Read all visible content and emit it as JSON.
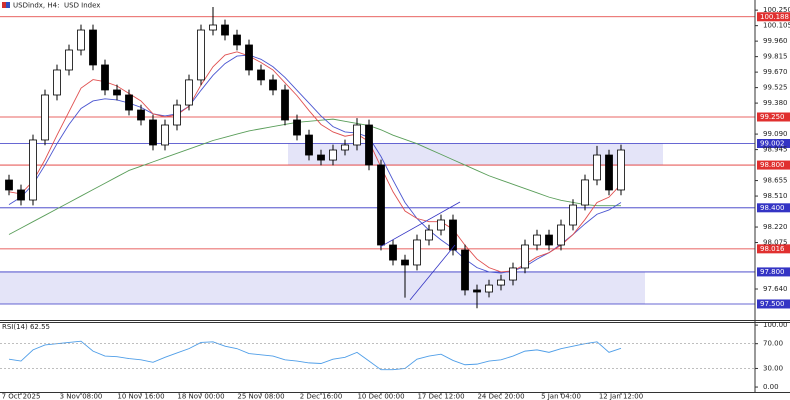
{
  "chart_data": [
    {
      "type": "candlestick",
      "symbol": "USDindx, H4:",
      "description": "USD Index",
      "categories": [
        null,
        "7 Oct 2025",
        null,
        null,
        null,
        null,
        "3 Nov 08:00",
        null,
        null,
        null,
        null,
        "10 Nov 16:00",
        null,
        null,
        null,
        null,
        "18 Nov 00:00",
        null,
        null,
        null,
        null,
        "25 Nov 08:00",
        null,
        null,
        null,
        null,
        "2 Dec 16:00",
        null,
        null,
        null,
        null,
        "10 Dec 00:00",
        null,
        null,
        null,
        null,
        "17 Dec 12:00",
        null,
        null,
        null,
        null,
        "24 Dec 20:00",
        null,
        null,
        null,
        null,
        "5 Jan 04:00",
        null,
        null,
        null,
        null,
        "12 Jan 12:00"
      ],
      "open": [
        98.66,
        98.567,
        98.473,
        99.035,
        99.456,
        99.69,
        99.877,
        100.064,
        99.737,
        99.503,
        99.456,
        99.315,
        99.222,
        98.988,
        99.175,
        99.362,
        99.597,
        100.064,
        100.111,
        100.017,
        99.924,
        99.69,
        99.597,
        99.503,
        99.222,
        99.081,
        98.894,
        98.847,
        98.941,
        98.988,
        99.175,
        98.801,
        98.052,
        97.911,
        97.865,
        98.099,
        98.192,
        98.286,
        98.005,
        97.631,
        97.612,
        97.677,
        97.724,
        97.837,
        98.052,
        98.145,
        98.052,
        98.239,
        98.426,
        98.661,
        98.894,
        98.567
      ],
      "high": [
        98.71,
        98.617,
        99.085,
        99.506,
        99.74,
        99.927,
        100.114,
        100.114,
        99.787,
        99.553,
        99.506,
        99.365,
        99.272,
        99.225,
        99.412,
        99.647,
        100.114,
        100.28,
        100.161,
        100.067,
        99.974,
        99.74,
        99.647,
        99.553,
        99.272,
        99.131,
        98.944,
        98.991,
        99.038,
        99.24,
        99.225,
        98.851,
        98.102,
        97.961,
        98.149,
        98.242,
        98.336,
        98.336,
        98.055,
        97.681,
        97.727,
        97.774,
        97.887,
        98.102,
        98.195,
        98.195,
        98.289,
        98.48,
        98.711,
        98.98,
        98.944,
        98.991
      ],
      "low": [
        98.517,
        98.423,
        98.423,
        98.985,
        99.406,
        99.64,
        99.827,
        99.687,
        99.453,
        99.406,
        99.265,
        99.172,
        98.938,
        98.938,
        99.125,
        99.312,
        99.547,
        100.014,
        99.967,
        99.874,
        99.64,
        99.547,
        99.453,
        99.172,
        99.031,
        98.844,
        98.797,
        98.797,
        98.891,
        98.938,
        98.751,
        98.002,
        97.861,
        97.56,
        97.815,
        98.049,
        98.142,
        97.955,
        97.581,
        97.46,
        97.562,
        97.627,
        97.674,
        97.787,
        98.002,
        98.002,
        98.002,
        98.189,
        98.376,
        98.611,
        98.517,
        98.517
      ],
      "close": [
        98.567,
        98.473,
        99.035,
        99.456,
        99.69,
        99.877,
        100.064,
        99.737,
        99.503,
        99.456,
        99.315,
        99.222,
        98.988,
        99.175,
        99.362,
        99.597,
        100.064,
        100.111,
        100.017,
        99.924,
        99.69,
        99.597,
        99.503,
        99.222,
        99.081,
        98.894,
        98.847,
        98.941,
        98.988,
        99.175,
        98.801,
        98.052,
        97.911,
        97.865,
        98.099,
        98.192,
        98.286,
        98.005,
        97.631,
        97.612,
        97.677,
        97.724,
        97.837,
        98.052,
        98.145,
        98.052,
        98.239,
        98.426,
        98.661,
        98.894,
        98.567,
        98.941
      ],
      "up_color": "#ffffff",
      "down_color": "#000000",
      "series": [
        {
          "color": "#5a9e5a",
          "values": [
            98.15,
            98.21,
            98.27,
            98.33,
            98.39,
            98.45,
            98.51,
            98.57,
            98.63,
            98.69,
            98.75,
            98.79,
            98.83,
            98.87,
            98.91,
            98.95,
            98.99,
            99.03,
            99.06,
            99.09,
            99.12,
            99.14,
            99.16,
            99.18,
            99.2,
            99.21,
            99.22,
            99.23,
            99.21,
            99.19,
            99.17,
            99.13,
            99.08,
            99.04,
            99.0,
            98.95,
            98.9,
            98.85,
            98.8,
            98.75,
            98.7,
            98.66,
            98.62,
            98.58,
            98.54,
            98.5,
            98.47,
            98.45,
            98.43,
            98.42,
            98.42,
            98.42
          ]
        },
        {
          "color": "#4a55d0",
          "values": [
            98.43,
            98.5,
            98.62,
            98.8,
            99.0,
            99.18,
            99.33,
            99.4,
            99.42,
            99.41,
            99.38,
            99.34,
            99.28,
            99.26,
            99.28,
            99.35,
            99.5,
            99.64,
            99.75,
            99.82,
            99.83,
            99.79,
            99.72,
            99.62,
            99.5,
            99.38,
            99.26,
            99.16,
            99.11,
            99.1,
            99.06,
            98.88,
            98.66,
            98.45,
            98.3,
            98.19,
            98.1,
            98.02,
            97.92,
            97.84,
            97.8,
            97.79,
            97.81,
            97.85,
            97.92,
            97.98,
            98.06,
            98.15,
            98.25,
            98.34,
            98.38,
            98.45
          ]
        },
        {
          "color": "#e05050",
          "values": [
            98.55,
            98.53,
            98.65,
            98.85,
            99.08,
            99.3,
            99.52,
            99.6,
            99.58,
            99.54,
            99.47,
            99.4,
            99.28,
            99.25,
            99.27,
            99.35,
            99.55,
            99.72,
            99.83,
            99.86,
            99.82,
            99.76,
            99.69,
            99.57,
            99.45,
            99.31,
            99.18,
            99.11,
            99.07,
            99.09,
            99.02,
            98.78,
            98.55,
            98.37,
            98.3,
            98.27,
            98.27,
            98.2,
            98.05,
            97.92,
            97.84,
            97.8,
            97.81,
            97.87,
            97.94,
            97.98,
            98.05,
            98.15,
            98.29,
            98.45,
            98.5,
            98.62
          ]
        }
      ],
      "ylim": [
        97.35,
        100.345
      ],
      "yticks": [
        {
          "value": 100.25,
          "label": "100.250"
        },
        {
          "value": 100.105,
          "label": "100.105"
        },
        {
          "value": 99.96,
          "label": "99.960"
        },
        {
          "value": 99.815,
          "label": "99.815"
        },
        {
          "value": 99.67,
          "label": "99.670"
        },
        {
          "value": 99.525,
          "label": "99.525"
        },
        {
          "value": 99.38,
          "label": "99.380"
        },
        {
          "value": 99.09,
          "label": "99.090"
        },
        {
          "value": 98.945,
          "label": "98.945"
        },
        {
          "value": 98.655,
          "label": "98.655"
        },
        {
          "value": 98.51,
          "label": "98.510"
        },
        {
          "value": 98.22,
          "label": "98.220"
        },
        {
          "value": 98.075,
          "label": "98.075"
        },
        {
          "value": 97.64,
          "label": "97.640"
        }
      ],
      "grid": false,
      "levels": [
        {
          "value": 100.188,
          "label": "100.188",
          "color": "#e0302f"
        },
        {
          "value": 99.25,
          "label": "99.250",
          "color": "#e0302f"
        },
        {
          "value": 99.002,
          "label": "99.002",
          "color": "#3434c4"
        },
        {
          "value": 98.8,
          "label": "98.800",
          "color": "#e0302f"
        },
        {
          "value": 98.4,
          "label": "98.400",
          "color": "#3434c4"
        },
        {
          "value": 98.016,
          "label": "98.016",
          "color": "#e0302f"
        },
        {
          "value": 97.8,
          "label": "97.800",
          "color": "#3434c4"
        },
        {
          "value": 97.5,
          "label": "97.500",
          "color": "#3434c4"
        }
      ],
      "zones": [
        {
          "from": 98.8,
          "to": 99.002,
          "color": "#e4e4f8"
        },
        {
          "from": 97.5,
          "to": 97.8,
          "color": "#e4e4f8"
        }
      ]
    },
    {
      "type": "line",
      "title": "RSI(14) 62.55",
      "color": "#4f9ee8",
      "values": [
        45,
        42,
        60,
        68,
        70,
        72,
        74,
        58,
        50,
        49,
        46,
        44,
        40,
        48,
        55,
        62,
        72,
        73,
        66,
        62,
        54,
        52,
        50,
        44,
        42,
        39,
        38,
        45,
        48,
        56,
        42,
        28,
        28,
        30,
        45,
        50,
        53,
        43,
        36,
        37,
        42,
        44,
        50,
        58,
        60,
        56,
        62,
        66,
        70,
        73,
        56,
        62.55
      ],
      "ylim": [
        -8,
        105
      ],
      "yticks": [
        {
          "value": 100,
          "label": "100.00"
        },
        {
          "value": 70,
          "label": "70.00"
        },
        {
          "value": 30,
          "label": "30.00"
        },
        {
          "value": 0,
          "label": "0.00"
        }
      ],
      "levels": [
        70,
        30
      ]
    }
  ]
}
